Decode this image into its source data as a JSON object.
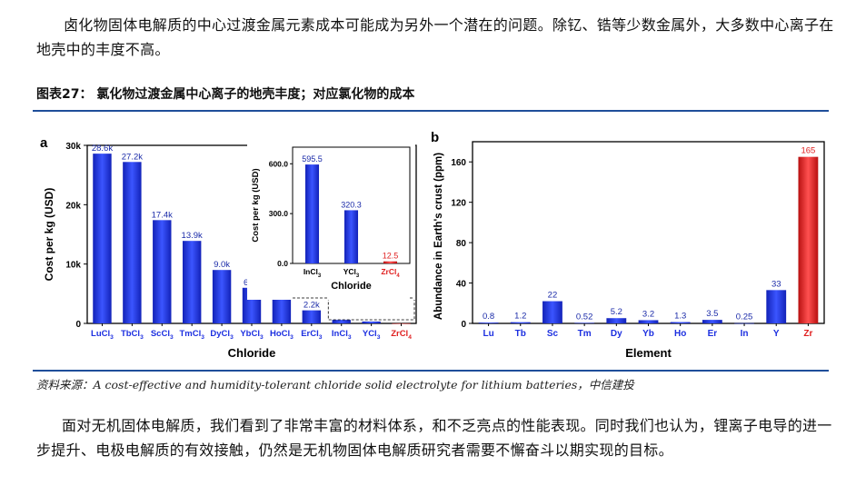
{
  "text": {
    "para1": "卤化物固体电解质的中心过渡金属元素成本可能成为另外一个潜在的问题。除钇、锆等少数金属外，大多数中心离子在地壳中的丰度不高。",
    "caption": "图表27：   氯化物过渡金属中心离子的地壳丰度；对应氯化物的成本",
    "source": "资料来源：A cost-effective and humidity-tolerant chloride solid electrolyte for lithium batteries，中信建投",
    "para2": "面对无机固体电解质，我们看到了非常丰富的材料体系，和不乏亮点的性能表现。同时我们也认为，锂离子电导的进一步提升、电极电解质的有效接触，仍然是无机物固体电解质研究者需要不懈奋斗以期实现的目标。"
  },
  "colors": {
    "blue": "#1c2fe0",
    "red": "#e02020",
    "rule": "#1f4e9a"
  },
  "chart_data": [
    {
      "type": "bar",
      "panel": "a",
      "xlabel": "Chloride",
      "ylabel": "Cost per kg (USD)",
      "ylim": [
        0,
        30000
      ],
      "yticks": [
        0,
        10000,
        20000,
        30000
      ],
      "yticklabels": [
        "0",
        "10k",
        "20k",
        "30k"
      ],
      "categories": [
        {
          "base": "LuCl",
          "sub": "3"
        },
        {
          "base": "TbCl",
          "sub": "3"
        },
        {
          "base": "ScCl",
          "sub": "3"
        },
        {
          "base": "TmCl",
          "sub": "3"
        },
        {
          "base": "DyCl",
          "sub": "3"
        },
        {
          "base": "YbCl",
          "sub": "3"
        },
        {
          "base": "HoCl",
          "sub": "3"
        },
        {
          "base": "ErCl",
          "sub": "3"
        },
        {
          "base": "InCl",
          "sub": "3"
        },
        {
          "base": "YCl",
          "sub": "3"
        },
        {
          "base": "ZrCl",
          "sub": "4",
          "highlight": true
        }
      ],
      "values": [
        28600,
        27200,
        17400,
        13900,
        9000,
        6000,
        5900,
        2200,
        595.5,
        320.3,
        12.5
      ],
      "value_labels": [
        "28.6k",
        "27.2k",
        "17.4k",
        "13.9k",
        "9.0k",
        "6.0k",
        "5.9k",
        "2.2k",
        "",
        "",
        ""
      ],
      "inset": {
        "ylabel": "Cost per kg (USD)",
        "xlabel": "Chloride",
        "ylim": [
          0,
          700
        ],
        "yticks": [
          0,
          300,
          600
        ],
        "yticklabels": [
          "0.0",
          "300.0",
          "600.0"
        ],
        "categories": [
          {
            "base": "InCl",
            "sub": "3"
          },
          {
            "base": "YCl",
            "sub": "3"
          },
          {
            "base": "ZrCl",
            "sub": "4",
            "highlight": true
          }
        ],
        "values": [
          595.5,
          320.3,
          12.5
        ],
        "value_labels": [
          "595.5",
          "320.3",
          "12.5"
        ]
      }
    },
    {
      "type": "bar",
      "panel": "b",
      "xlabel": "Element",
      "ylabel": "Abundance in Earth's crust (ppm)",
      "ylim": [
        0,
        180
      ],
      "yticks": [
        0,
        40,
        80,
        120,
        160
      ],
      "yticklabels": [
        "0",
        "40",
        "80",
        "120",
        "160"
      ],
      "categories": [
        "Lu",
        "Tb",
        "Sc",
        "Tm",
        "Dy",
        "Yb",
        "Ho",
        "Er",
        "In",
        "Y",
        "Zr"
      ],
      "highlight": [
        "Zr"
      ],
      "values": [
        0.8,
        1.2,
        22,
        0.52,
        5.2,
        3.2,
        1.3,
        3.5,
        0.25,
        33,
        165
      ],
      "value_labels": [
        "0.8",
        "1.2",
        "22",
        "0.52",
        "5.2",
        "3.2",
        "1.3",
        "3.5",
        "0.25",
        "33",
        "165"
      ]
    }
  ]
}
